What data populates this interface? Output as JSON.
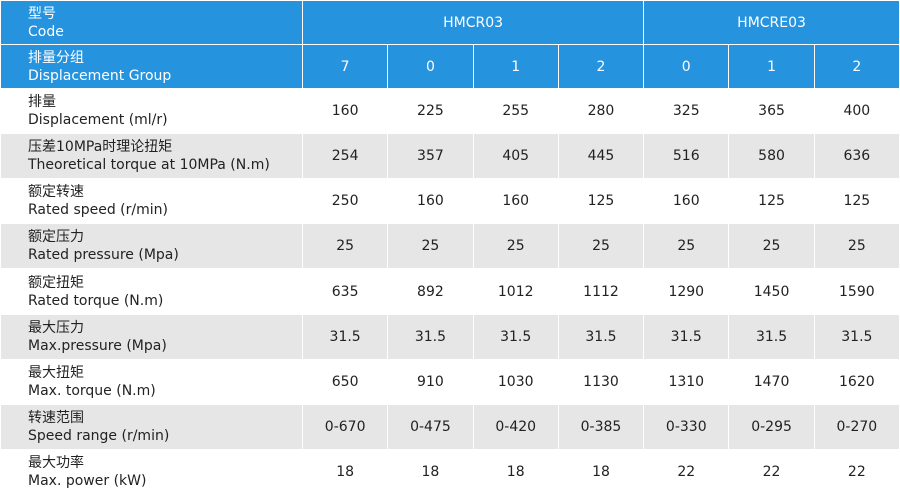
{
  "header": {
    "code_label": {
      "zh": "型号",
      "en": "Code"
    },
    "group_label": {
      "zh": "排量分组",
      "en": "Displacement Group"
    },
    "models": [
      {
        "name": "HMCR03",
        "groups": [
          7,
          0,
          1,
          2
        ]
      },
      {
        "name": "HMCRE03",
        "groups": [
          0,
          1,
          2
        ]
      }
    ]
  },
  "rows": [
    {
      "zh": "排量",
      "en": "Displacement (ml/r)",
      "values": [
        160,
        225,
        255,
        280,
        325,
        365,
        400
      ]
    },
    {
      "zh": "压差10MPa时理论扭矩",
      "en": "Theoretical torque at 10MPa (N.m)",
      "values": [
        254,
        357,
        405,
        445,
        516,
        580,
        636
      ]
    },
    {
      "zh": "额定转速",
      "en": "Rated speed (r/min)",
      "values": [
        250,
        160,
        160,
        125,
        160,
        125,
        125
      ]
    },
    {
      "zh": "额定压力",
      "en": "Rated pressure (Mpa)",
      "values": [
        25,
        25,
        25,
        25,
        25,
        25,
        25
      ]
    },
    {
      "zh": "额定扭矩",
      "en": "Rated torque (N.m)",
      "values": [
        635,
        892,
        1012,
        1112,
        1290,
        1450,
        1590
      ]
    },
    {
      "zh": "最大压力",
      "en": "Max.pressure (Mpa)",
      "values": [
        31.5,
        31.5,
        31.5,
        31.5,
        31.5,
        31.5,
        31.5
      ]
    },
    {
      "zh": "最大扭矩",
      "en": "Max. torque (N.m)",
      "values": [
        650,
        910,
        1030,
        1130,
        1310,
        1470,
        1620
      ]
    },
    {
      "zh": "转速范围",
      "en": "Speed range (r/min)",
      "values": [
        "0-670",
        "0-475",
        "0-420",
        "0-385",
        "0-330",
        "0-295",
        "0-270"
      ]
    },
    {
      "zh": "最大功率",
      "en": "Max. power (kW)",
      "values": [
        18,
        18,
        18,
        18,
        22,
        22,
        22
      ]
    }
  ]
}
